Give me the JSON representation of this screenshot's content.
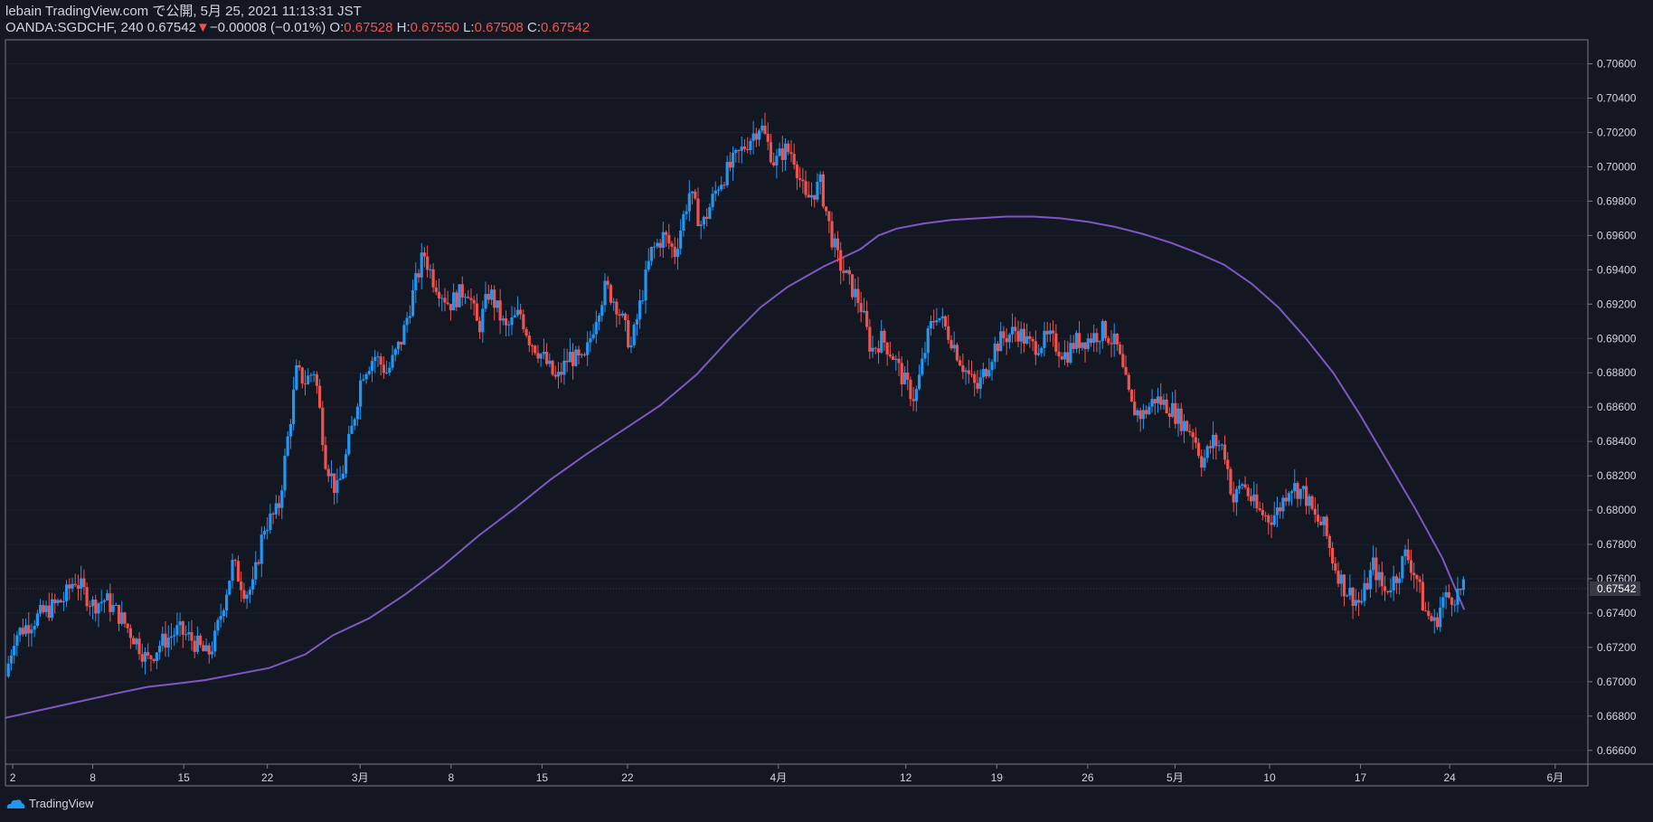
{
  "header": {
    "publish_line": "lebain TradingView.com で公開, 5月 25, 2021 11:13:31 JST",
    "symbol": "OANDA:SGDCHF, 240",
    "last": "0.67542",
    "change": "−0.00008 (−0.01%)",
    "o_label": "O:",
    "o_value": "0.67528",
    "h_label": "H:",
    "h_value": "0.67550",
    "l_label": "L:",
    "l_value": "0.67508",
    "c_label": "C:",
    "c_value": "0.67542"
  },
  "footer": {
    "brand": "TradingView"
  },
  "colors": {
    "background": "#131722",
    "up": "#2196f3",
    "down": "#ef5350",
    "ma": "#7e57c2",
    "text": "#d1d4dc",
    "border": "#787b86"
  },
  "chart_data": {
    "type": "candlestick",
    "ylim": [
      0.6652,
      0.7074
    ],
    "y_ticks": [
      0.666,
      0.668,
      0.67,
      0.672,
      0.674,
      0.676,
      0.678,
      0.68,
      0.682,
      0.684,
      0.686,
      0.688,
      0.69,
      0.692,
      0.694,
      0.696,
      0.698,
      0.7,
      0.702,
      0.704,
      0.706
    ],
    "y_tick_labels": [
      "0.66600",
      "0.66800",
      "0.67000",
      "0.67200",
      "0.67400",
      "0.67600",
      "0.67800",
      "0.68000",
      "0.68200",
      "0.68400",
      "0.68600",
      "0.68800",
      "0.69000",
      "0.69200",
      "0.69400",
      "0.69600",
      "0.69800",
      "0.70000",
      "0.70200",
      "0.70400",
      "0.70600"
    ],
    "last_price": 0.67542,
    "last_price_label": "0.67542",
    "x_tick_labels": [
      "2",
      "8",
      "15",
      "22",
      "3月",
      "8",
      "15",
      "22",
      "4月",
      "12",
      "19",
      "26",
      "5月",
      "10",
      "17",
      "24",
      "6月"
    ],
    "x_tick_pos": [
      0.4,
      4.8,
      9.8,
      14.4,
      19.5,
      24.5,
      29.5,
      34.2,
      42.5,
      49.5,
      54.5,
      59.5,
      64.3,
      69.5,
      74.5,
      79.4,
      85.2
    ],
    "xlim": [
      0,
      87
    ],
    "price_path_x": [
      0,
      0.5,
      1.8,
      3.2,
      3.8,
      4.8,
      5.5,
      6.3,
      7.3,
      7.8,
      8.5,
      9.5,
      10.2,
      11.1,
      11.5,
      12.5,
      13.2,
      13.6,
      14.2,
      15.0,
      16.0,
      16.5,
      17.0,
      17.6,
      18.2,
      18.6,
      19.1,
      19.6,
      20.3,
      21.0,
      21.8,
      22.5,
      23.0,
      23.5,
      24.4,
      25.4,
      26.0,
      26.6,
      27.5,
      28.3,
      28.8,
      29.5,
      30.3,
      31.0,
      31.8,
      32.5,
      33.0,
      33.6,
      34.4,
      35.5,
      36.2,
      36.8,
      37.6,
      38.3,
      39.2,
      40.5,
      41.5,
      42.3,
      42.8,
      43.3,
      44.0,
      44.8,
      45.4,
      45.8,
      46.5,
      47.0,
      47.6,
      48.2,
      48.8,
      49.4,
      50.0,
      50.8,
      51.2,
      52.0,
      52.6,
      53.4,
      54.4,
      54.8,
      55.6,
      56.4,
      57.4,
      58.3,
      58.8,
      59.6,
      60.4,
      61.1,
      61.9,
      62.5,
      63.2,
      64.0,
      64.8,
      65.3,
      65.8,
      66.4,
      67.0,
      67.5,
      68.0,
      68.8,
      69.5,
      70.0,
      70.6,
      71.4,
      72.0,
      72.5,
      73.0,
      73.6,
      74.5,
      75.2,
      75.8,
      76.5,
      77.0,
      77.6,
      78.0,
      78.6,
      79.0,
      79.6,
      80.2
    ],
    "price_path_y": [
      0.6703,
      0.6727,
      0.6738,
      0.6748,
      0.676,
      0.6745,
      0.6748,
      0.6738,
      0.6722,
      0.6712,
      0.6722,
      0.673,
      0.6725,
      0.6715,
      0.6724,
      0.6769,
      0.6752,
      0.6755,
      0.679,
      0.68,
      0.688,
      0.6875,
      0.6882,
      0.683,
      0.681,
      0.6825,
      0.685,
      0.688,
      0.689,
      0.688,
      0.69,
      0.693,
      0.695,
      0.6935,
      0.692,
      0.693,
      0.6905,
      0.6928,
      0.6905,
      0.6915,
      0.69,
      0.689,
      0.6875,
      0.689,
      0.6885,
      0.6915,
      0.693,
      0.692,
      0.6895,
      0.695,
      0.696,
      0.695,
      0.6985,
      0.6965,
      0.699,
      0.701,
      0.7025,
      0.7002,
      0.701,
      0.7008,
      0.698,
      0.699,
      0.696,
      0.6945,
      0.693,
      0.692,
      0.6893,
      0.69,
      0.689,
      0.6875,
      0.6865,
      0.6905,
      0.6915,
      0.69,
      0.6885,
      0.687,
      0.6895,
      0.69,
      0.6905,
      0.6895,
      0.69,
      0.689,
      0.6898,
      0.69,
      0.6905,
      0.6895,
      0.686,
      0.6855,
      0.6865,
      0.686,
      0.685,
      0.6845,
      0.6828,
      0.684,
      0.6836,
      0.6805,
      0.6816,
      0.68,
      0.6795,
      0.68,
      0.6815,
      0.681,
      0.6795,
      0.679,
      0.677,
      0.6755,
      0.6745,
      0.6768,
      0.6752,
      0.6762,
      0.6775,
      0.676,
      0.6742,
      0.6733,
      0.6748,
      0.675,
      0.6754
    ],
    "ma_x": [
      0,
      3,
      6,
      7.8,
      9.5,
      11,
      12.5,
      14.5,
      16.5,
      18,
      20,
      22,
      24,
      26,
      28,
      30,
      32,
      34,
      36,
      38,
      40,
      41.5,
      43,
      45,
      47,
      48,
      49,
      50.5,
      52,
      53.5,
      55,
      56.5,
      58,
      59.5,
      61,
      62.5,
      64,
      65.5,
      67,
      68.5,
      70,
      71.5,
      73,
      74.5,
      76,
      77.5,
      79,
      80.2
    ],
    "ma_y": [
      0.6679,
      0.6686,
      0.6693,
      0.6697,
      0.6699,
      0.6701,
      0.6704,
      0.6708,
      0.6716,
      0.6727,
      0.6737,
      0.6751,
      0.6767,
      0.6785,
      0.6801,
      0.6818,
      0.6833,
      0.6847,
      0.6861,
      0.6879,
      0.6902,
      0.6918,
      0.693,
      0.6942,
      0.6952,
      0.696,
      0.6964,
      0.6967,
      0.6969,
      0.697,
      0.6971,
      0.6971,
      0.697,
      0.6968,
      0.6965,
      0.6961,
      0.6956,
      0.695,
      0.6943,
      0.6932,
      0.6918,
      0.69,
      0.688,
      0.6855,
      0.6828,
      0.6801,
      0.6772,
      0.6742
    ]
  }
}
